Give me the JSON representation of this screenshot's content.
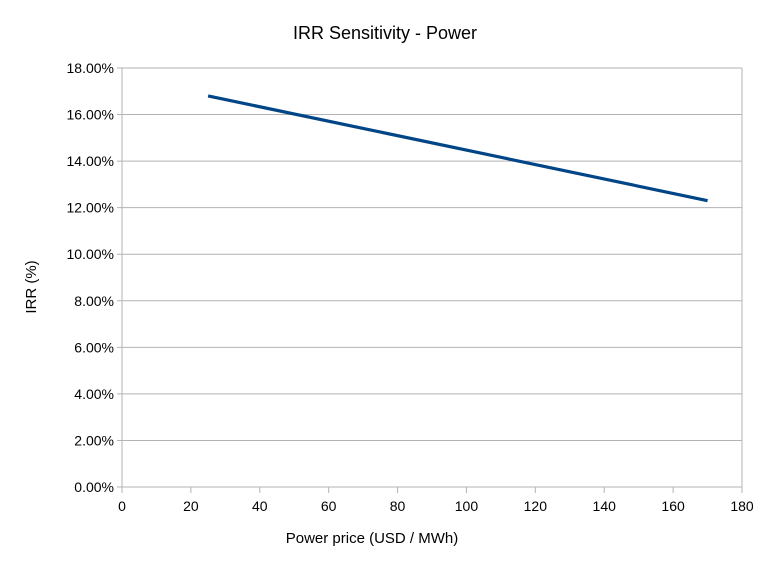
{
  "chart_data": {
    "type": "line",
    "title": "IRR Sensitivity - Power",
    "xlabel": "Power price (USD / MWh)",
    "ylabel": "IRR (%)",
    "xlim": [
      0,
      180
    ],
    "ylim": [
      0.0,
      18.0
    ],
    "x_ticks": [
      "0",
      "20",
      "40",
      "60",
      "80",
      "100",
      "120",
      "140",
      "160",
      "180"
    ],
    "y_ticks": [
      "0.00%",
      "2.00%",
      "4.00%",
      "6.00%",
      "8.00%",
      "10.00%",
      "12.00%",
      "14.00%",
      "16.00%",
      "18.00%"
    ],
    "grid": true,
    "legend": false,
    "series": [
      {
        "color": "#004586",
        "x": [
          25,
          170
        ],
        "y": [
          16.8,
          12.3
        ]
      }
    ]
  }
}
